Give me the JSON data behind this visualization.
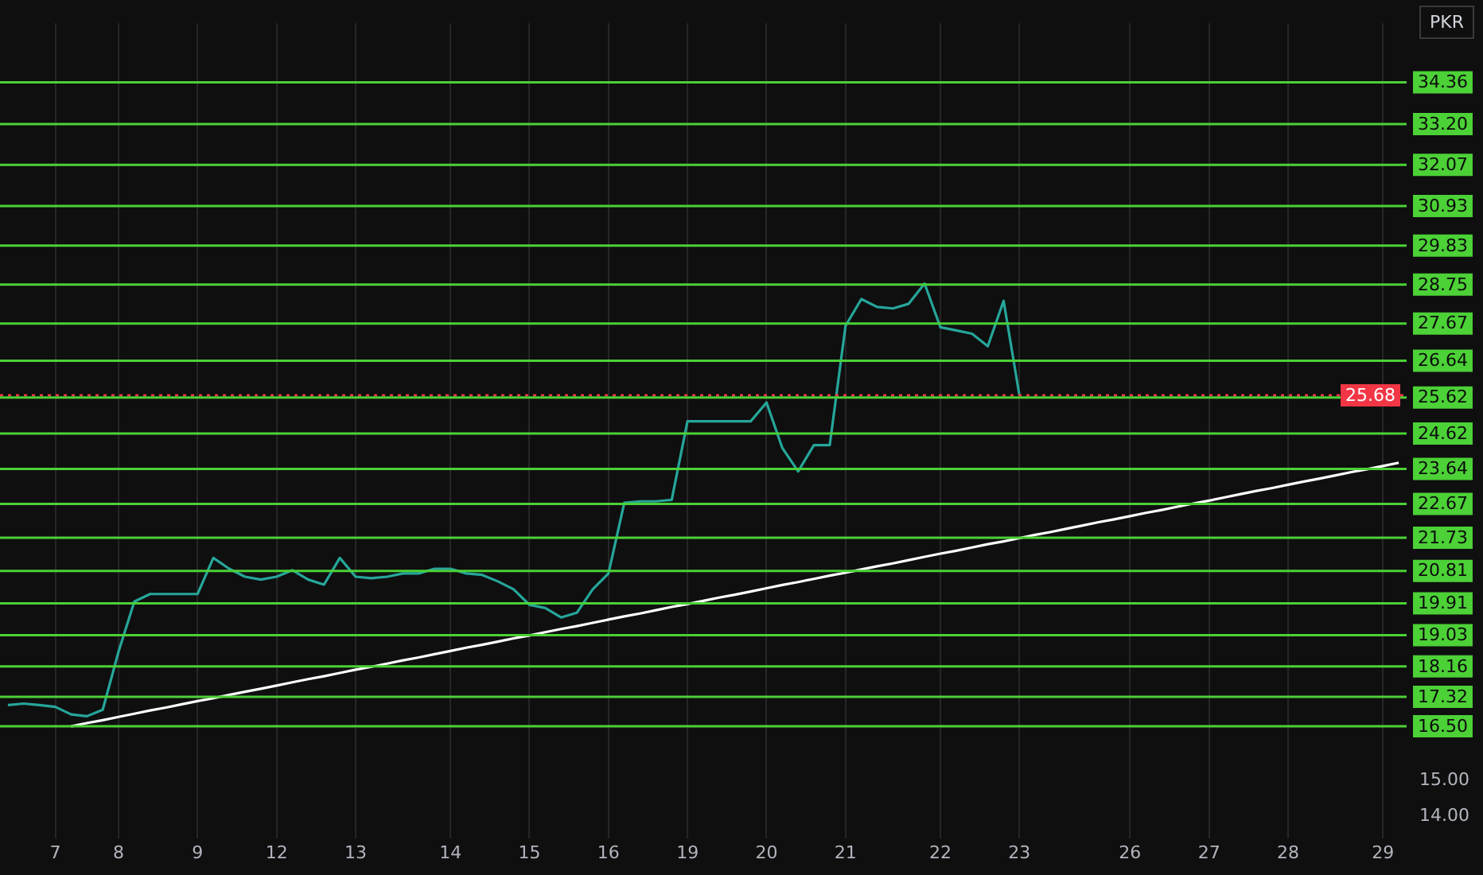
{
  "chart_data": {
    "type": "line",
    "ylabel": "PKR",
    "categories": [
      null,
      null,
      null,
      "7",
      null,
      null,
      null,
      "8",
      null,
      null,
      null,
      null,
      "9",
      null,
      null,
      null,
      null,
      "12",
      null,
      null,
      null,
      null,
      "13",
      null,
      null,
      null,
      null,
      null,
      "14",
      null,
      null,
      null,
      null,
      "15",
      null,
      null,
      null,
      null,
      "16",
      null,
      null,
      null,
      null,
      "19",
      null,
      null,
      null,
      null,
      "20",
      null,
      null,
      null,
      null,
      "21",
      null,
      null,
      null,
      null,
      null,
      "22",
      null,
      null,
      null,
      null,
      "23",
      null,
      null,
      null,
      null,
      null,
      null,
      "26",
      null,
      null,
      null,
      null,
      "27",
      null,
      null,
      null,
      null,
      "28",
      null,
      null,
      null,
      null,
      null,
      "29",
      null
    ],
    "ylim": [
      13.4,
      36
    ],
    "yticks": [
      {
        "value": 14,
        "label": "14.00"
      },
      {
        "value": 15,
        "label": "15.00"
      }
    ],
    "grid": "x",
    "marker": "none",
    "line_style": "solid",
    "series": [
      {
        "color": "#26a69a",
        "values": [
          17.09,
          17.13,
          17.09,
          17.04,
          16.83,
          16.78,
          16.96,
          18.57,
          19.96,
          20.17,
          20.17,
          20.17,
          20.17,
          21.17,
          20.87,
          20.65,
          20.57,
          20.65,
          20.83,
          20.57,
          20.43,
          21.17,
          20.65,
          20.61,
          20.65,
          20.74,
          20.74,
          20.87,
          20.87,
          20.74,
          20.7,
          20.52,
          20.3,
          19.87,
          19.78,
          19.52,
          19.65,
          20.3,
          20.74,
          22.7,
          22.74,
          22.74,
          22.78,
          24.96,
          24.96,
          24.96,
          24.96,
          24.96,
          25.48,
          24.22,
          23.57,
          24.3,
          24.3,
          27.61,
          28.35,
          28.13,
          28.09,
          28.22,
          28.78,
          27.57,
          27.48,
          27.39,
          27.04,
          28.3,
          25.68,
          null,
          null,
          null,
          null,
          null,
          null,
          null,
          null,
          null,
          null,
          null,
          null,
          null,
          null,
          null,
          null,
          null,
          null,
          null,
          null,
          null,
          null,
          null,
          null
        ]
      },
      {
        "color": "#ffffff",
        "values": [
          null,
          null,
          null,
          null,
          16.5,
          16.59,
          16.67,
          16.76,
          16.85,
          16.94,
          17.02,
          17.11,
          17.2,
          17.28,
          17.37,
          17.46,
          17.54,
          17.63,
          17.72,
          17.81,
          17.89,
          17.98,
          18.07,
          18.15,
          18.24,
          18.33,
          18.41,
          18.5,
          18.59,
          18.68,
          18.76,
          18.85,
          18.94,
          19.02,
          19.11,
          19.2,
          19.28,
          19.37,
          19.46,
          19.55,
          19.63,
          19.72,
          19.81,
          19.89,
          19.98,
          20.07,
          20.15,
          20.24,
          20.33,
          20.42,
          20.5,
          20.59,
          20.68,
          20.76,
          20.85,
          20.94,
          21.02,
          21.11,
          21.2,
          21.29,
          21.37,
          21.46,
          21.55,
          21.63,
          21.72,
          21.81,
          21.89,
          21.98,
          22.07,
          22.16,
          22.24,
          22.33,
          22.42,
          22.5,
          22.59,
          22.68,
          22.76,
          22.85,
          22.94,
          23.03,
          23.11,
          23.2,
          23.29,
          23.37,
          23.46,
          23.55,
          23.63,
          23.72,
          23.81
        ]
      }
    ],
    "ref_lines": [
      {
        "axis": "y",
        "value": 34.36,
        "label": "34.36",
        "color": "#4cd137"
      },
      {
        "axis": "y",
        "value": 33.2,
        "label": "33.20",
        "color": "#4cd137"
      },
      {
        "axis": "y",
        "value": 32.07,
        "label": "32.07",
        "color": "#4cd137"
      },
      {
        "axis": "y",
        "value": 30.93,
        "label": "30.93",
        "color": "#4cd137"
      },
      {
        "axis": "y",
        "value": 29.83,
        "label": "29.83",
        "color": "#4cd137"
      },
      {
        "axis": "y",
        "value": 28.75,
        "label": "28.75",
        "color": "#4cd137"
      },
      {
        "axis": "y",
        "value": 27.67,
        "label": "27.67",
        "color": "#4cd137"
      },
      {
        "axis": "y",
        "value": 26.64,
        "label": "26.64",
        "color": "#4cd137"
      },
      {
        "axis": "y",
        "value": 25.68,
        "label": "25.68",
        "color": "#f23645",
        "line_style": "dotted"
      },
      {
        "axis": "y",
        "value": 25.62,
        "label": "25.62",
        "color": "#4cd137"
      },
      {
        "axis": "y",
        "value": 24.62,
        "label": "24.62",
        "color": "#4cd137"
      },
      {
        "axis": "y",
        "value": 23.64,
        "label": "23.64",
        "color": "#4cd137"
      },
      {
        "axis": "y",
        "value": 22.67,
        "label": "22.67",
        "color": "#4cd137"
      },
      {
        "axis": "y",
        "value": 21.73,
        "label": "21.73",
        "color": "#4cd137"
      },
      {
        "axis": "y",
        "value": 20.81,
        "label": "20.81",
        "color": "#4cd137"
      },
      {
        "axis": "y",
        "value": 19.91,
        "label": "19.91",
        "color": "#4cd137"
      },
      {
        "axis": "y",
        "value": 19.03,
        "label": "19.03",
        "color": "#4cd137"
      },
      {
        "axis": "y",
        "value": 18.16,
        "label": "18.16",
        "color": "#4cd137"
      },
      {
        "axis": "y",
        "value": 17.32,
        "label": "17.32",
        "color": "#4cd137"
      },
      {
        "axis": "y",
        "value": 16.5,
        "label": "16.50",
        "color": "#4cd137"
      }
    ]
  }
}
